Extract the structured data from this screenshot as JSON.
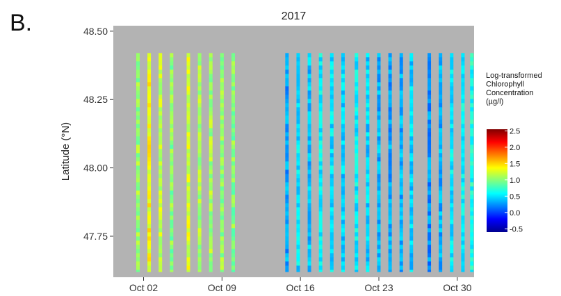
{
  "panel_label": "B.",
  "chart_data": {
    "type": "heatmap",
    "title": "2017",
    "xlabel": "",
    "ylabel": "Latitude (°N)",
    "x_ticks": [
      "Oct 02",
      "Oct 09",
      "Oct 16",
      "Oct 23",
      "Oct 30"
    ],
    "x_tick_days": [
      2,
      9,
      16,
      23,
      30
    ],
    "xlim": [
      -0.7,
      31.5
    ],
    "y_ticks": [
      "47.75",
      "48.00",
      "48.25",
      "48.50"
    ],
    "y_tick_values": [
      47.75,
      48.0,
      48.25,
      48.5
    ],
    "ylim": [
      47.6,
      48.52
    ],
    "transect_lat_range": [
      47.62,
      48.42
    ],
    "grid": false,
    "background": "#b3b3b3",
    "legend": {
      "position": "right",
      "title_lines": [
        "Log-transformed",
        "Chlorophyll",
        "Concentration",
        "(µg/l)"
      ],
      "ticks": [
        "2.5",
        "2.0",
        "1.5",
        "1.0",
        "0.5",
        "0.0",
        "-0.5"
      ],
      "tick_values": [
        2.5,
        2.0,
        1.5,
        1.0,
        0.5,
        0.0,
        -0.5
      ],
      "range": [
        -0.6,
        2.55
      ],
      "colors": [
        "#00008f",
        "#0000ff",
        "#0080ff",
        "#00ffff",
        "#80ff80",
        "#ffff00",
        "#ff8000",
        "#ff0000",
        "#800000"
      ]
    },
    "series": [
      {
        "day": 1.5,
        "value": 1.05
      },
      {
        "day": 2.5,
        "value": 1.35
      },
      {
        "day": 3.5,
        "value": 1.2
      },
      {
        "day": 4.5,
        "value": 1.0
      },
      {
        "day": 6.0,
        "value": 1.25
      },
      {
        "day": 7.0,
        "value": 1.1
      },
      {
        "day": 8.0,
        "value": 1.1
      },
      {
        "day": 9.0,
        "value": 1.05
      },
      {
        "day": 10.0,
        "value": 1.0
      },
      {
        "day": 14.8,
        "value": 0.3
      },
      {
        "day": 15.8,
        "value": 0.5
      },
      {
        "day": 16.8,
        "value": 0.4
      },
      {
        "day": 17.8,
        "value": 0.55
      },
      {
        "day": 18.8,
        "value": 0.5
      },
      {
        "day": 19.8,
        "value": 0.45
      },
      {
        "day": 21.0,
        "value": 0.55
      },
      {
        "day": 22.0,
        "value": 0.45
      },
      {
        "day": 23.0,
        "value": 0.35
      },
      {
        "day": 24.0,
        "value": 0.3
      },
      {
        "day": 25.0,
        "value": 0.35
      },
      {
        "day": 25.9,
        "value": 0.45
      },
      {
        "day": 27.5,
        "value": 0.25
      },
      {
        "day": 28.5,
        "value": 0.35
      },
      {
        "day": 29.5,
        "value": 0.5
      },
      {
        "day": 30.5,
        "value": 0.55
      },
      {
        "day": 31.3,
        "value": 0.65
      }
    ]
  }
}
